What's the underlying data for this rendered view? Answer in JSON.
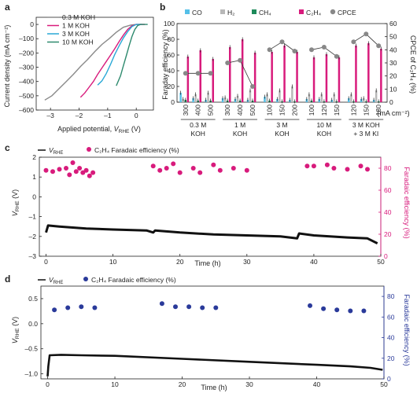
{
  "chart_data": [
    {
      "panel": "a",
      "type": "line",
      "xlabel_pre": "Applied potential, ",
      "xlabel_var": "V",
      "xlabel_sub": "RHE",
      "xlabel_post": " (V)",
      "ylabel": "Current density (mA cm⁻²)",
      "xlim": [
        -3.5,
        0.6
      ],
      "ylim": [
        -600,
        50
      ],
      "xticks": [
        -3,
        -2,
        -1,
        0
      ],
      "yticks": [
        0,
        -100,
        -200,
        -300,
        -400,
        -500,
        -600
      ],
      "legend": "top-left",
      "series": [
        {
          "name": "0.3 M KOH",
          "color": "#8a8a8a",
          "x": [
            -3.2,
            -2.95,
            -2.7,
            -2.45,
            -2.2,
            -1.95,
            -1.7,
            -1.45,
            -1.2,
            -0.95,
            -0.7,
            -0.45,
            -0.2,
            0,
            0.3
          ],
          "y": [
            -530,
            -500,
            -450,
            -400,
            -350,
            -295,
            -245,
            -190,
            -140,
            -100,
            -55,
            -20,
            -5,
            0,
            0
          ]
        },
        {
          "name": "1 M KOH",
          "color": "#d81b7c",
          "x": [
            -1.95,
            -1.8,
            -1.65,
            -1.5,
            -1.35,
            -1.2,
            -1.05,
            -0.9,
            -0.75,
            -0.6,
            -0.45,
            -0.3,
            -0.15,
            0,
            0.3
          ],
          "y": [
            -510,
            -480,
            -440,
            -400,
            -350,
            -305,
            -260,
            -215,
            -170,
            -120,
            -75,
            -35,
            -10,
            0,
            0
          ]
        },
        {
          "name": "3 M KOH",
          "color": "#29a8d6",
          "x": [
            -1.35,
            -1.2,
            -1.05,
            -0.9,
            -0.75,
            -0.6,
            -0.45,
            -0.3,
            -0.15,
            0,
            0.2
          ],
          "y": [
            -425,
            -395,
            -345,
            -280,
            -210,
            -150,
            -95,
            -50,
            -15,
            0,
            0
          ]
        },
        {
          "name": "10 M KOH",
          "color": "#2e8a6e",
          "x": [
            -0.7,
            -0.55,
            -0.45,
            -0.35,
            -0.25,
            -0.15,
            -0.05,
            0.05,
            0.15,
            0.25,
            0.4
          ],
          "y": [
            -430,
            -360,
            -290,
            -220,
            -150,
            -85,
            -35,
            -8,
            0,
            0,
            0
          ]
        }
      ]
    },
    {
      "panel": "b",
      "type": "bar",
      "ylabel": "Faraday efficiency (%)",
      "y2label": "CPCE of C₂H₄ (%)",
      "ylim": [
        0,
        100
      ],
      "y2lim": [
        0,
        60
      ],
      "yticks": [
        0,
        20,
        40,
        60,
        80,
        100
      ],
      "y2ticks": [
        0,
        10,
        20,
        30,
        40,
        50,
        60
      ],
      "unit_note": "(mA cm⁻²)",
      "legend_labels": [
        "CO",
        "H₂",
        "CH₄",
        "C₂H₄",
        "CPCE"
      ],
      "legend_colors": [
        "#55c0e8",
        "#b8b8b8",
        "#1d8a5a",
        "#d81b7c",
        "#888888"
      ],
      "groups": [
        {
          "label1": "0.3 M",
          "label2": "KOH",
          "currents": [
            "300",
            "400",
            "500"
          ]
        },
        {
          "label1": "1 M",
          "label2": "KOH",
          "currents": [
            "300",
            "400",
            "500"
          ]
        },
        {
          "label1": "3 M",
          "label2": "KOH",
          "currents": [
            "100",
            "150",
            "200"
          ]
        },
        {
          "label1": "10 M",
          "label2": "KOH",
          "currents": [
            "100",
            "120",
            "150"
          ]
        },
        {
          "label1": "3 M KOH",
          "label2": "+ 3 M KI",
          "currents": [
            "120",
            "150",
            "180"
          ]
        }
      ],
      "series": [
        {
          "name": "CO",
          "values": [
            12,
            5,
            3,
            5,
            4,
            3,
            7,
            4,
            3,
            4,
            4,
            3,
            5,
            4,
            3
          ]
        },
        {
          "name": "H₂",
          "values": [
            4,
            10,
            12,
            6,
            8,
            15,
            10,
            15,
            20,
            10,
            10,
            10,
            10,
            5,
            15
          ]
        },
        {
          "name": "CH₄",
          "values": [
            3,
            2,
            2,
            2,
            2,
            2,
            2,
            1,
            1,
            2,
            1,
            1,
            1,
            1,
            1
          ]
        },
        {
          "name": "C₂H₄",
          "values": [
            58,
            66,
            55,
            70,
            80,
            63,
            64,
            72,
            64,
            57,
            61,
            57,
            72,
            75,
            68
          ]
        },
        {
          "name": "CPCE",
          "values": [
            22,
            22,
            22,
            30,
            32,
            12,
            40,
            46,
            39,
            40,
            42,
            35,
            46,
            52,
            43
          ]
        }
      ]
    },
    {
      "panel": "c",
      "type": "scatter",
      "legend_vrhe_var": "V",
      "legend_vrhe_sub": "RHE",
      "legend_fe": "C₂H₄ Faradaic efficiency (%)",
      "xlabel": "Time (h)",
      "ylabel_var": "V",
      "ylabel_sub": "RHE",
      "ylabel_post": " (V)",
      "y2label": "Faradaic efficiency (%)",
      "xlim": [
        -1,
        50
      ],
      "xticks": [
        0,
        10,
        20,
        30,
        40,
        50
      ],
      "ylim": [
        -3,
        2
      ],
      "yticks": [
        2,
        1,
        0,
        -1,
        -2,
        -3
      ],
      "y2lim": [
        0,
        90
      ],
      "y2ticks": [
        0,
        20,
        40,
        60,
        80
      ],
      "marker_color": "#d81b7c",
      "line_x": [
        0,
        0.3,
        2,
        6,
        10,
        15,
        16,
        16.3,
        20,
        25,
        30,
        35,
        37.5,
        37.8,
        40,
        45,
        48,
        49.5
      ],
      "line_y": [
        -1.8,
        -1.45,
        -1.5,
        -1.6,
        -1.65,
        -1.7,
        -1.8,
        -1.7,
        -1.8,
        -1.9,
        -1.95,
        -2.0,
        -2.1,
        -1.85,
        -1.95,
        -2.05,
        -2.1,
        -2.35
      ],
      "points_x": [
        0,
        1,
        2,
        3,
        3.5,
        4,
        4.5,
        5,
        5.5,
        6,
        6.5,
        7,
        16,
        17,
        18,
        19,
        20,
        22,
        23,
        25,
        26,
        28,
        30,
        39,
        40,
        42,
        43,
        45,
        47,
        48
      ],
      "points_y": [
        78,
        77,
        79,
        80,
        74,
        85,
        77,
        80,
        76,
        78,
        73,
        76,
        82,
        78,
        80,
        84,
        76,
        80,
        76,
        83,
        78,
        80,
        78,
        82,
        82,
        83,
        80,
        79,
        82,
        79
      ]
    },
    {
      "panel": "d",
      "type": "scatter",
      "legend_vrhe_var": "V",
      "legend_vrhe_sub": "RHE",
      "legend_fe": "C₂H₄ Faradaic efficiency (%)",
      "xlabel": "Time (h)",
      "ylabel_var": "V",
      "ylabel_sub": "RHE",
      "ylabel_post": " (V)",
      "y2label": "Faradaic efficiency (%)",
      "xlim": [
        -1,
        50
      ],
      "xticks": [
        0,
        10,
        20,
        30,
        40,
        50
      ],
      "ylim": [
        -1.1,
        0.75
      ],
      "yticks": [
        0.5,
        0,
        -0.5,
        -1.0
      ],
      "ytick_labels": [
        "0.5",
        "0.0",
        "–0.5",
        "–1.0"
      ],
      "y2lim": [
        0,
        90
      ],
      "y2ticks": [
        0,
        20,
        40,
        60,
        80
      ],
      "marker_color": "#2a3a9a",
      "line_x": [
        0,
        0.1,
        0.3,
        2,
        5,
        10,
        20,
        30,
        40,
        45,
        48,
        49.8
      ],
      "line_y": [
        -1.05,
        -0.85,
        -0.63,
        -0.62,
        -0.63,
        -0.64,
        -0.7,
        -0.76,
        -0.82,
        -0.85,
        -0.88,
        -0.92
      ],
      "points_x": [
        1,
        3,
        5,
        7,
        17,
        19,
        21,
        23,
        25,
        39,
        41,
        43,
        45,
        47
      ],
      "points_y": [
        67,
        69,
        70,
        69,
        73,
        70,
        70,
        69,
        69,
        71,
        68,
        67,
        66,
        66
      ]
    }
  ],
  "panel_labels": {
    "a": "a",
    "b": "b",
    "c": "c",
    "d": "d"
  }
}
